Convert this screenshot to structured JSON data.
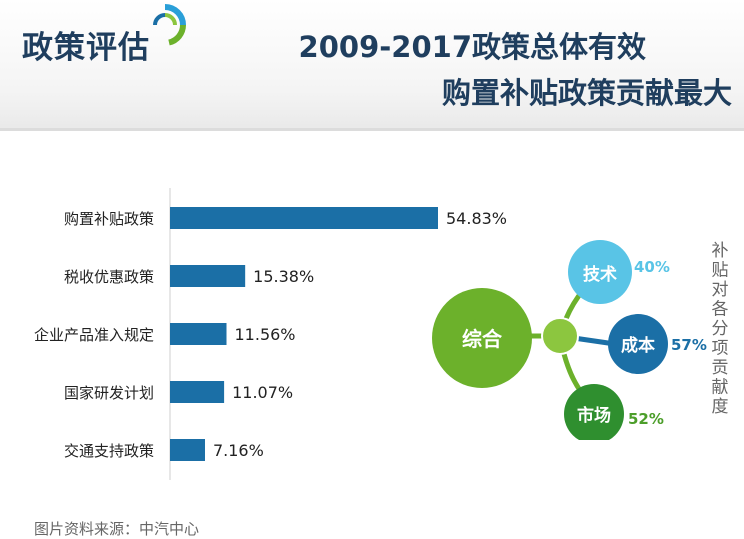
{
  "header": {
    "section_title": "政策评估",
    "title_line1": "2009-2017政策总体有效",
    "title_line2": "购置补贴政策贡献最大"
  },
  "chart_data": {
    "type": "bar",
    "orientation": "horizontal",
    "categories": [
      "购置补贴政策",
      "税收优惠政策",
      "企业产品准入规定",
      "国家研发计划",
      "交通支持政策"
    ],
    "values": [
      54.83,
      15.38,
      11.56,
      11.07,
      7.16
    ],
    "value_labels": [
      "54.83%",
      "15.38%",
      "11.56%",
      "11.07%",
      "7.16%"
    ],
    "unit": "%",
    "bar_color": "#1b6fa6",
    "grid": false,
    "legend": "none"
  },
  "diagram": {
    "center_label": "综合",
    "hub_color": "#6cb12b",
    "side_label": "补贴对各分项贡献度",
    "nodes": [
      {
        "label": "技术",
        "value": "40%",
        "color": "#59c4e6",
        "value_color": "#59c4e6"
      },
      {
        "label": "成本",
        "value": "57%",
        "color": "#1b6fa6",
        "value_color": "#1b6fa6"
      },
      {
        "label": "市场",
        "value": "52%",
        "color": "#2f8f2f",
        "value_color": "#4c9e2a"
      }
    ]
  },
  "footer": {
    "source": "图片资料来源：中汽中心"
  }
}
